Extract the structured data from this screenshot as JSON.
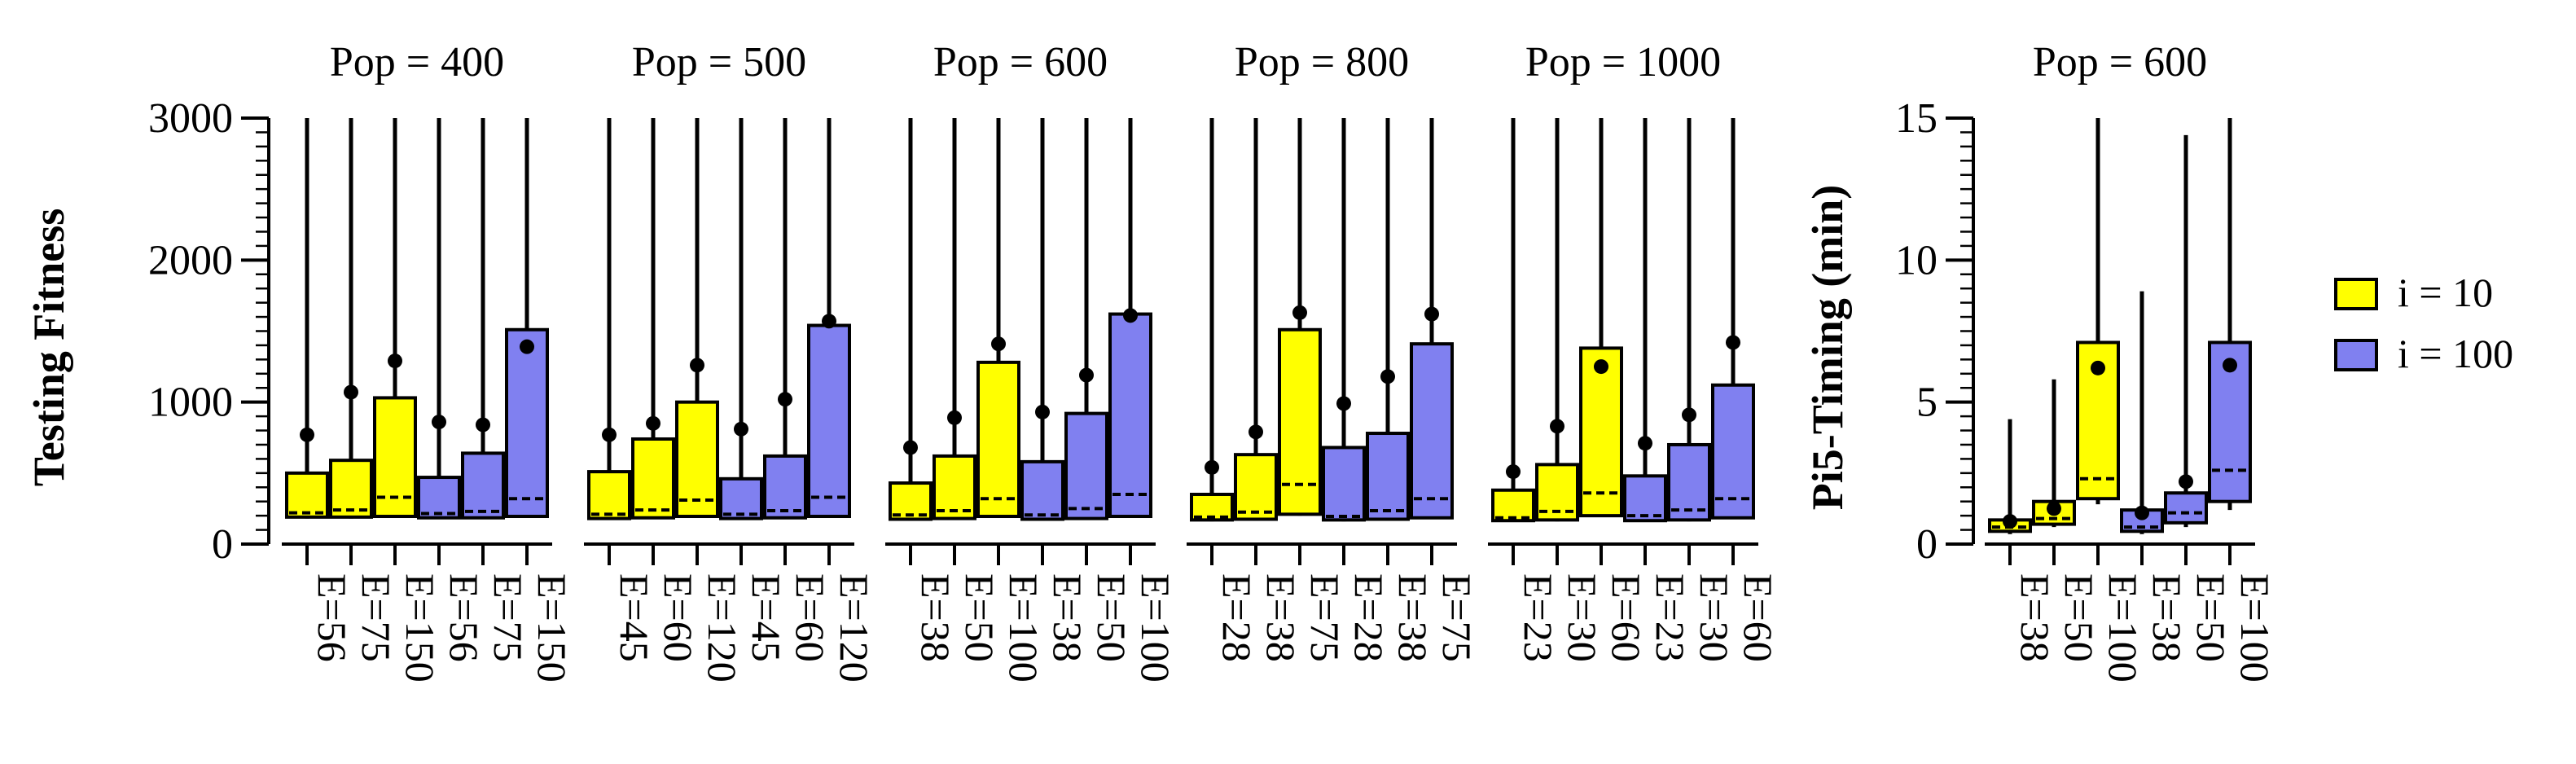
{
  "colors": {
    "i10": "#FFFF00",
    "i100": "#8080F0",
    "stroke": "#000000",
    "background": "#FFFFFF"
  },
  "legend": {
    "placement": "right",
    "entries": [
      {
        "label": "i = 10",
        "color": "#FFFF00"
      },
      {
        "label": "i = 100",
        "color": "#8080F0"
      }
    ]
  },
  "chart_data": [
    {
      "type": "box",
      "ylabel": "Testing Fitness",
      "ylim": [
        0,
        3000
      ],
      "yticks": [
        0,
        1000,
        2000,
        3000
      ],
      "ytick_labels": [
        "0",
        "1000",
        "2000",
        "3000"
      ],
      "groups": [
        {
          "title": "Pop = 400",
          "boxes": [
            {
              "label": "E=56",
              "series": "i = 10",
              "whisker_low": 180,
              "q1": 190,
              "median": 220,
              "q3": 500,
              "whisker_high": 3000,
              "mean": 770
            },
            {
              "label": "E=75",
              "series": "i = 10",
              "whisker_low": 180,
              "q1": 190,
              "median": 240,
              "q3": 590,
              "whisker_high": 3000,
              "mean": 1070
            },
            {
              "label": "E=150",
              "series": "i = 10",
              "whisker_low": 190,
              "q1": 195,
              "median": 330,
              "q3": 1030,
              "whisker_high": 3000,
              "mean": 1290
            },
            {
              "label": "E=56",
              "series": "i = 100",
              "whisker_low": 175,
              "q1": 185,
              "median": 215,
              "q3": 470,
              "whisker_high": 3000,
              "mean": 860
            },
            {
              "label": "E=75",
              "series": "i = 100",
              "whisker_low": 175,
              "q1": 185,
              "median": 230,
              "q3": 640,
              "whisker_high": 3000,
              "mean": 840
            },
            {
              "label": "E=150",
              "series": "i = 100",
              "whisker_low": 190,
              "q1": 195,
              "median": 320,
              "q3": 1510,
              "whisker_high": 3000,
              "mean": 1390
            }
          ]
        },
        {
          "title": "Pop = 500",
          "boxes": [
            {
              "label": "E=45",
              "series": "i = 10",
              "whisker_low": 170,
              "q1": 180,
              "median": 210,
              "q3": 510,
              "whisker_high": 3000,
              "mean": 770
            },
            {
              "label": "E=60",
              "series": "i = 10",
              "whisker_low": 175,
              "q1": 185,
              "median": 240,
              "q3": 740,
              "whisker_high": 3000,
              "mean": 850
            },
            {
              "label": "E=120",
              "series": "i = 10",
              "whisker_low": 185,
              "q1": 195,
              "median": 310,
              "q3": 1000,
              "whisker_high": 3000,
              "mean": 1260
            },
            {
              "label": "E=45",
              "series": "i = 100",
              "whisker_low": 170,
              "q1": 180,
              "median": 210,
              "q3": 460,
              "whisker_high": 3000,
              "mean": 810
            },
            {
              "label": "E=60",
              "series": "i = 100",
              "whisker_low": 175,
              "q1": 185,
              "median": 235,
              "q3": 620,
              "whisker_high": 3000,
              "mean": 1020
            },
            {
              "label": "E=120",
              "series": "i = 100",
              "whisker_low": 185,
              "q1": 195,
              "median": 330,
              "q3": 1540,
              "whisker_high": 3000,
              "mean": 1570
            }
          ]
        },
        {
          "title": "Pop = 600",
          "boxes": [
            {
              "label": "E=38",
              "series": "i = 10",
              "whisker_low": 165,
              "q1": 175,
              "median": 205,
              "q3": 430,
              "whisker_high": 3000,
              "mean": 680
            },
            {
              "label": "E=50",
              "series": "i = 10",
              "whisker_low": 170,
              "q1": 180,
              "median": 235,
              "q3": 620,
              "whisker_high": 3000,
              "mean": 890
            },
            {
              "label": "E=100",
              "series": "i = 10",
              "whisker_low": 185,
              "q1": 195,
              "median": 320,
              "q3": 1280,
              "whisker_high": 3000,
              "mean": 1410
            },
            {
              "label": "E=38",
              "series": "i = 100",
              "whisker_low": 165,
              "q1": 175,
              "median": 205,
              "q3": 580,
              "whisker_high": 3000,
              "mean": 930
            },
            {
              "label": "E=50",
              "series": "i = 100",
              "whisker_low": 170,
              "q1": 180,
              "median": 250,
              "q3": 920,
              "whisker_high": 3000,
              "mean": 1190
            },
            {
              "label": "E=100",
              "series": "i = 100",
              "whisker_low": 185,
              "q1": 195,
              "median": 350,
              "q3": 1620,
              "whisker_high": 3000,
              "mean": 1610
            }
          ]
        },
        {
          "title": "Pop = 800",
          "boxes": [
            {
              "label": "E=28",
              "series": "i = 10",
              "whisker_low": 160,
              "q1": 170,
              "median": 190,
              "q3": 350,
              "whisker_high": 3000,
              "mean": 540
            },
            {
              "label": "E=38",
              "series": "i = 10",
              "whisker_low": 165,
              "q1": 175,
              "median": 225,
              "q3": 630,
              "whisker_high": 3000,
              "mean": 790
            },
            {
              "label": "E=75",
              "series": "i = 10",
              "whisker_low": 200,
              "q1": 210,
              "median": 420,
              "q3": 1510,
              "whisker_high": 3000,
              "mean": 1630
            },
            {
              "label": "E=28",
              "series": "i = 100",
              "whisker_low": 160,
              "q1": 170,
              "median": 195,
              "q3": 680,
              "whisker_high": 3000,
              "mean": 990
            },
            {
              "label": "E=38",
              "series": "i = 100",
              "whisker_low": 165,
              "q1": 175,
              "median": 235,
              "q3": 780,
              "whisker_high": 3000,
              "mean": 1180
            },
            {
              "label": "E=75",
              "series": "i = 100",
              "whisker_low": 175,
              "q1": 185,
              "median": 320,
              "q3": 1410,
              "whisker_high": 3000,
              "mean": 1620
            }
          ]
        },
        {
          "title": "Pop = 1000",
          "boxes": [
            {
              "label": "E=23",
              "series": "i = 10",
              "whisker_low": 155,
              "q1": 165,
              "median": 185,
              "q3": 380,
              "whisker_high": 3000,
              "mean": 510
            },
            {
              "label": "E=30",
              "series": "i = 10",
              "whisker_low": 160,
              "q1": 170,
              "median": 230,
              "q3": 560,
              "whisker_high": 3000,
              "mean": 830
            },
            {
              "label": "E=60",
              "series": "i = 10",
              "whisker_low": 190,
              "q1": 200,
              "median": 360,
              "q3": 1380,
              "whisker_high": 3000,
              "mean": 1250
            },
            {
              "label": "E=23",
              "series": "i = 100",
              "whisker_low": 155,
              "q1": 165,
              "median": 200,
              "q3": 480,
              "whisker_high": 3000,
              "mean": 710
            },
            {
              "label": "E=30",
              "series": "i = 100",
              "whisker_low": 160,
              "q1": 170,
              "median": 240,
              "q3": 700,
              "whisker_high": 3000,
              "mean": 910
            },
            {
              "label": "E=60",
              "series": "i = 100",
              "whisker_low": 175,
              "q1": 185,
              "median": 320,
              "q3": 1120,
              "whisker_high": 3000,
              "mean": 1420
            }
          ]
        }
      ]
    },
    {
      "type": "box",
      "ylabel": "Pi5-Timing (min)",
      "ylim": [
        0,
        15
      ],
      "yticks": [
        0,
        5,
        10,
        15
      ],
      "ytick_labels": [
        "0",
        "5",
        "10",
        "15"
      ],
      "groups": [
        {
          "title": "Pop = 600",
          "boxes": [
            {
              "label": "E=38",
              "series": "i = 10",
              "whisker_low": 0.35,
              "q1": 0.45,
              "median": 0.6,
              "q3": 0.85,
              "whisker_high": 4.4,
              "mean": 0.8
            },
            {
              "label": "E=50",
              "series": "i = 10",
              "whisker_low": 0.6,
              "q1": 0.7,
              "median": 0.9,
              "q3": 1.5,
              "whisker_high": 5.8,
              "mean": 1.25
            },
            {
              "label": "E=100",
              "series": "i = 10",
              "whisker_low": 1.4,
              "q1": 1.6,
              "median": 2.3,
              "q3": 7.1,
              "whisker_high": 15,
              "mean": 6.2
            },
            {
              "label": "E=38",
              "series": "i = 100",
              "whisker_low": 0.35,
              "q1": 0.45,
              "median": 0.6,
              "q3": 1.2,
              "whisker_high": 8.9,
              "mean": 1.1
            },
            {
              "label": "E=50",
              "series": "i = 100",
              "whisker_low": 0.6,
              "q1": 0.75,
              "median": 1.1,
              "q3": 1.8,
              "whisker_high": 14.4,
              "mean": 2.2
            },
            {
              "label": "E=100",
              "series": "i = 100",
              "whisker_low": 1.2,
              "q1": 1.5,
              "median": 2.6,
              "q3": 7.1,
              "whisker_high": 15,
              "mean": 6.3
            }
          ]
        }
      ]
    }
  ]
}
